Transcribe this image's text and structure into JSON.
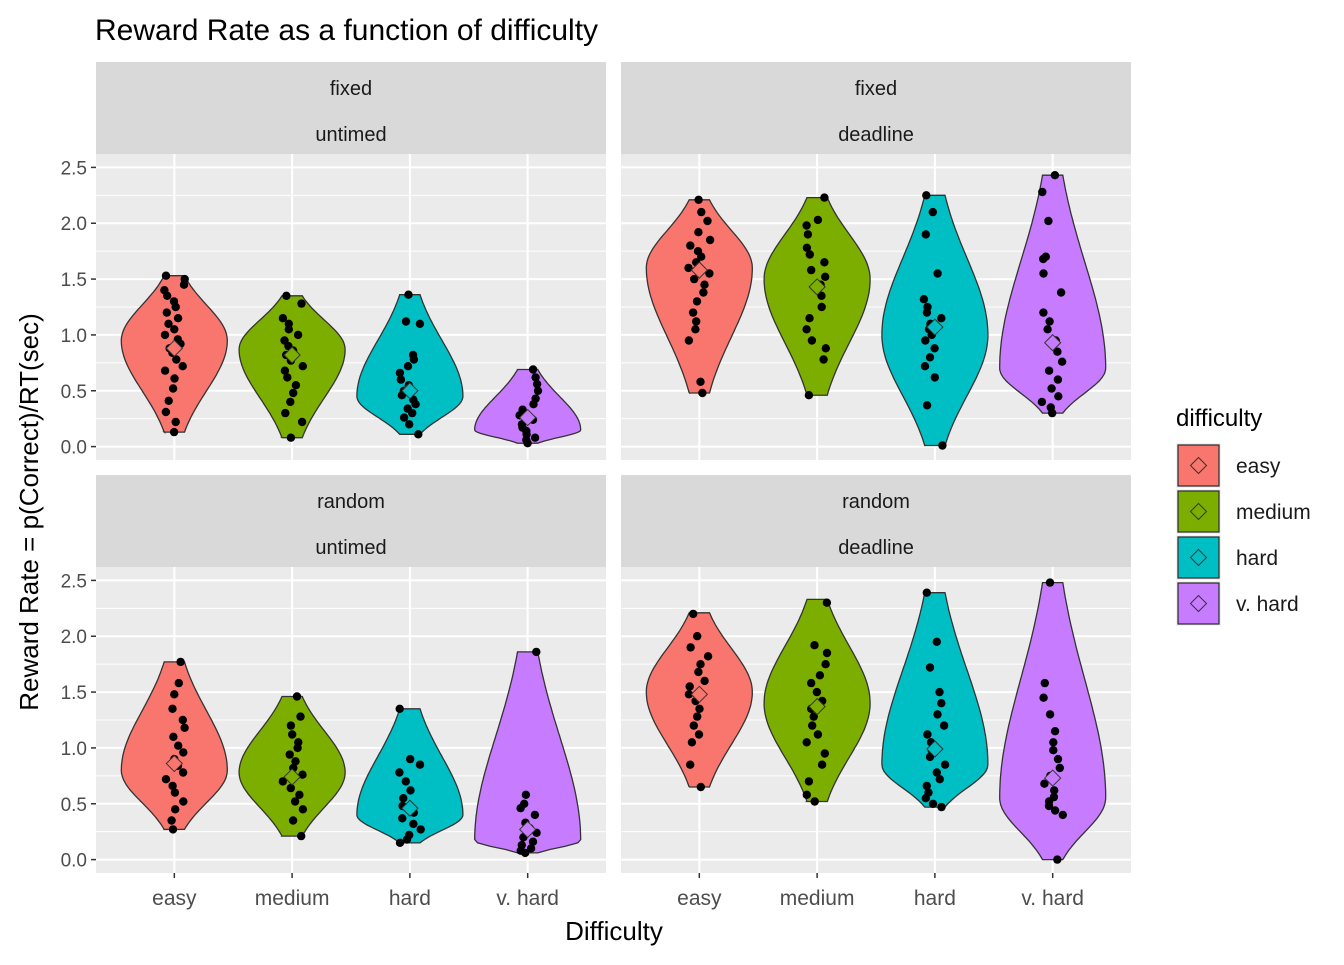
{
  "chart_data": {
    "type": "violin",
    "title": "Reward Rate as a function of difficulty",
    "xlabel": "Difficulty",
    "ylabel": "Reward Rate = p(Correct)/RT(sec)",
    "categories": [
      "easy",
      "medium",
      "hard",
      "v. hard"
    ],
    "y_ticks": [
      "0.0",
      "0.5",
      "1.0",
      "1.5",
      "2.0",
      "2.5"
    ],
    "ylim": [
      -0.12,
      2.62
    ],
    "grid": true,
    "legend": {
      "title": "difficulty",
      "position": "right",
      "entries": [
        "easy",
        "medium",
        "hard",
        "v. hard"
      ]
    },
    "colors": {
      "easy": "#F8766D",
      "medium": "#7CAE00",
      "hard": "#00BFC4",
      "v. hard": "#C77CFF",
      "panel_bg": "#EBEBEB",
      "strip_bg": "#D9D9D9",
      "grid": "#FFFFFF"
    },
    "panels": [
      {
        "strip_top": "fixed",
        "strip_bottom": "untimed",
        "groups": [
          {
            "category": "easy",
            "min": 0.13,
            "max": 1.53,
            "mean": 0.88,
            "mode": 0.95,
            "width": 0.45,
            "points": [
              0.13,
              0.22,
              0.31,
              0.41,
              0.52,
              0.61,
              0.68,
              0.72,
              0.78,
              0.84,
              0.88,
              0.92,
              0.96,
              1.0,
              1.05,
              1.1,
              1.15,
              1.2,
              1.25,
              1.3,
              1.35,
              1.4,
              1.45,
              1.5,
              1.53
            ]
          },
          {
            "category": "medium",
            "min": 0.08,
            "max": 1.35,
            "mean": 0.82,
            "mode": 0.87,
            "width": 0.45,
            "points": [
              0.08,
              0.22,
              0.3,
              0.4,
              0.48,
              0.55,
              0.62,
              0.68,
              0.72,
              0.77,
              0.82,
              0.86,
              0.9,
              0.95,
              1.0,
              1.05,
              1.1,
              1.15,
              1.28,
              1.35
            ]
          },
          {
            "category": "hard",
            "min": 0.11,
            "max": 1.36,
            "mean": 0.5,
            "mode": 0.45,
            "width": 0.45,
            "points": [
              0.11,
              0.2,
              0.26,
              0.3,
              0.34,
              0.38,
              0.42,
              0.46,
              0.5,
              0.55,
              0.6,
              0.66,
              0.72,
              0.78,
              0.82,
              1.1,
              1.12,
              1.36
            ]
          },
          {
            "category": "v. hard",
            "min": 0.03,
            "max": 0.69,
            "mean": 0.26,
            "mode": 0.15,
            "width": 0.45,
            "points": [
              0.03,
              0.06,
              0.08,
              0.11,
              0.14,
              0.17,
              0.2,
              0.24,
              0.28,
              0.33,
              0.38,
              0.43,
              0.5,
              0.56,
              0.62,
              0.69
            ]
          }
        ]
      },
      {
        "strip_top": "fixed",
        "strip_bottom": "deadline",
        "groups": [
          {
            "category": "easy",
            "min": 0.48,
            "max": 2.21,
            "mean": 1.58,
            "mode": 1.6,
            "width": 0.45,
            "points": [
              0.48,
              0.58,
              0.95,
              1.05,
              1.12,
              1.2,
              1.3,
              1.38,
              1.45,
              1.5,
              1.55,
              1.6,
              1.65,
              1.7,
              1.75,
              1.8,
              1.85,
              1.92,
              2.02,
              2.1,
              2.21
            ]
          },
          {
            "category": "medium",
            "min": 0.46,
            "max": 2.23,
            "mean": 1.43,
            "mode": 1.5,
            "width": 0.45,
            "points": [
              0.46,
              0.78,
              0.88,
              0.95,
              1.05,
              1.15,
              1.25,
              1.35,
              1.45,
              1.52,
              1.58,
              1.65,
              1.72,
              1.78,
              1.9,
              1.98,
              2.03,
              2.23
            ]
          },
          {
            "category": "hard",
            "min": 0.01,
            "max": 2.25,
            "mean": 1.07,
            "mode": 1.0,
            "width": 0.45,
            "points": [
              0.01,
              0.37,
              0.62,
              0.72,
              0.8,
              0.88,
              0.95,
              1.0,
              1.05,
              1.1,
              1.15,
              1.2,
              1.25,
              1.32,
              1.55,
              1.9,
              2.1,
              2.25
            ]
          },
          {
            "category": "v. hard",
            "min": 0.3,
            "max": 2.43,
            "mean": 0.93,
            "mode": 0.7,
            "width": 0.45,
            "points": [
              0.3,
              0.35,
              0.4,
              0.45,
              0.52,
              0.6,
              0.68,
              0.76,
              0.85,
              0.95,
              1.05,
              1.12,
              1.2,
              1.38,
              1.55,
              1.68,
              1.7,
              2.02,
              2.28,
              2.43
            ]
          }
        ]
      },
      {
        "strip_top": "random",
        "strip_bottom": "untimed",
        "groups": [
          {
            "category": "easy",
            "min": 0.27,
            "max": 1.77,
            "mean": 0.86,
            "mode": 0.8,
            "width": 0.45,
            "points": [
              0.27,
              0.35,
              0.45,
              0.52,
              0.6,
              0.66,
              0.72,
              0.78,
              0.84,
              0.9,
              0.96,
              1.02,
              1.1,
              1.18,
              1.25,
              1.35,
              1.48,
              1.58,
              1.77
            ]
          },
          {
            "category": "medium",
            "min": 0.21,
            "max": 1.46,
            "mean": 0.74,
            "mode": 0.78,
            "width": 0.45,
            "points": [
              0.21,
              0.35,
              0.45,
              0.52,
              0.58,
              0.64,
              0.7,
              0.76,
              0.82,
              0.88,
              0.94,
              1.0,
              1.05,
              1.12,
              1.2,
              1.28,
              1.46
            ]
          },
          {
            "category": "hard",
            "min": 0.15,
            "max": 1.35,
            "mean": 0.46,
            "mode": 0.4,
            "width": 0.45,
            "points": [
              0.15,
              0.18,
              0.22,
              0.27,
              0.32,
              0.37,
              0.42,
              0.48,
              0.55,
              0.62,
              0.7,
              0.78,
              0.85,
              0.9,
              1.35
            ]
          },
          {
            "category": "v. hard",
            "min": 0.06,
            "max": 1.86,
            "mean": 0.27,
            "mode": 0.17,
            "width": 0.45,
            "points": [
              0.06,
              0.08,
              0.1,
              0.13,
              0.16,
              0.2,
              0.24,
              0.28,
              0.33,
              0.4,
              0.46,
              0.5,
              0.58,
              1.86
            ]
          }
        ]
      },
      {
        "strip_top": "random",
        "strip_bottom": "deadline",
        "groups": [
          {
            "category": "easy",
            "min": 0.65,
            "max": 2.21,
            "mean": 1.48,
            "mode": 1.5,
            "width": 0.45,
            "points": [
              0.65,
              0.85,
              1.05,
              1.12,
              1.2,
              1.28,
              1.35,
              1.42,
              1.48,
              1.55,
              1.6,
              1.68,
              1.75,
              1.82,
              1.9,
              2.0,
              2.2
            ]
          },
          {
            "category": "medium",
            "min": 0.52,
            "max": 2.33,
            "mean": 1.37,
            "mode": 1.4,
            "width": 0.45,
            "points": [
              0.52,
              0.58,
              0.7,
              0.85,
              0.95,
              1.05,
              1.12,
              1.2,
              1.28,
              1.35,
              1.42,
              1.5,
              1.58,
              1.65,
              1.75,
              1.85,
              1.92,
              2.3
            ]
          },
          {
            "category": "hard",
            "min": 0.47,
            "max": 2.39,
            "mean": 0.99,
            "mode": 0.85,
            "width": 0.45,
            "points": [
              0.47,
              0.5,
              0.55,
              0.6,
              0.66,
              0.72,
              0.78,
              0.85,
              0.92,
              0.98,
              1.05,
              1.12,
              1.2,
              1.3,
              1.4,
              1.5,
              1.72,
              1.95,
              2.39
            ]
          },
          {
            "category": "v. hard",
            "min": 0.0,
            "max": 2.48,
            "mean": 0.73,
            "mode": 0.55,
            "width": 0.45,
            "points": [
              0.0,
              0.4,
              0.44,
              0.48,
              0.52,
              0.56,
              0.62,
              0.68,
              0.75,
              0.82,
              0.9,
              0.98,
              1.05,
              1.15,
              1.3,
              1.45,
              1.58,
              2.48
            ]
          }
        ]
      }
    ]
  }
}
